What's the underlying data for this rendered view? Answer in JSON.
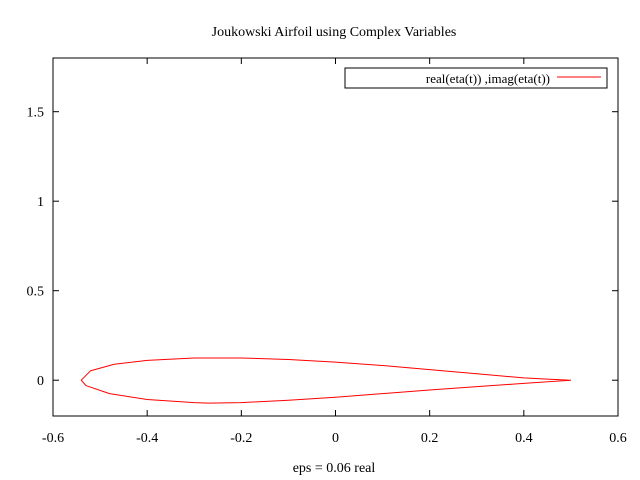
{
  "chart_data": {
    "type": "line",
    "title": "Joukowski Airfoil using Complex Variables",
    "xlabel": "eps = 0.06 real",
    "ylabel": "",
    "xlim": [
      -0.6,
      0.6
    ],
    "ylim": [
      -0.2,
      1.8
    ],
    "x_ticks": [
      -0.6,
      -0.4,
      -0.2,
      0,
      0.2,
      0.4,
      0.6
    ],
    "x_tick_labels": [
      "-0.6",
      "-0.4",
      "-0.2",
      "0",
      "0.2",
      "0.4",
      "0.6"
    ],
    "y_ticks": [
      0,
      0.5,
      1,
      1.5
    ],
    "y_tick_labels": [
      "0",
      "0.5",
      "1",
      "1.5"
    ],
    "grid": false,
    "legend_position": "top-right",
    "series": [
      {
        "name": "real(eta(t)) ,imag(eta(t))",
        "color": "#ff0000",
        "x": [
          0.5,
          0.45,
          0.4,
          0.3,
          0.2,
          0.1,
          0.0,
          -0.1,
          -0.2,
          -0.3,
          -0.4,
          -0.47,
          -0.52,
          -0.54,
          -0.53,
          -0.48,
          -0.4,
          -0.3,
          -0.27,
          -0.2,
          -0.1,
          0.0,
          0.1,
          0.2,
          0.3,
          0.4,
          0.5
        ],
        "y": [
          0.0,
          0.006,
          0.013,
          0.036,
          0.059,
          0.082,
          0.101,
          0.116,
          0.124,
          0.124,
          0.111,
          0.089,
          0.053,
          0.0,
          -0.03,
          -0.075,
          -0.108,
          -0.125,
          -0.128,
          -0.125,
          -0.112,
          -0.095,
          -0.075,
          -0.055,
          -0.036,
          -0.018,
          0.0
        ]
      }
    ]
  }
}
